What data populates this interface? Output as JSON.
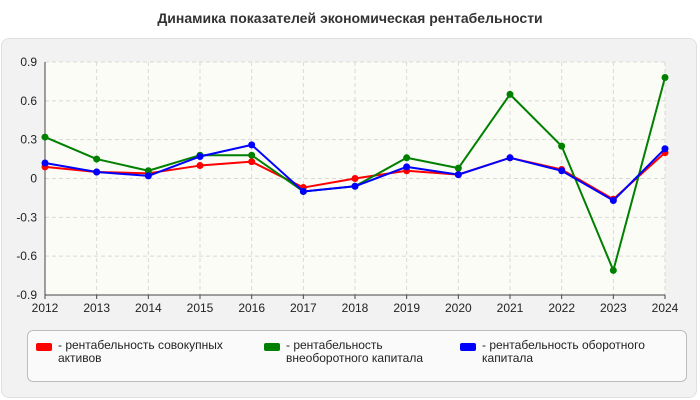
{
  "chart_data": {
    "type": "line",
    "title": "Динамика показателей экономическая рентабельности",
    "xlabel": "",
    "ylabel": "",
    "x": [
      "2012",
      "2013",
      "2014",
      "2015",
      "2016",
      "2017",
      "2018",
      "2019",
      "2020",
      "2021",
      "2022",
      "2023",
      "2024"
    ],
    "ylim": [
      -0.9,
      0.9
    ],
    "yticks": [
      0.9,
      0.6,
      0.3,
      0,
      -0.3,
      -0.6,
      -0.9
    ],
    "ytick_labels": [
      "0.9",
      "0.6",
      "0.3",
      "0",
      "-0.3",
      "-0.6",
      "-0.9"
    ],
    "grid": true,
    "legend_position": "bottom",
    "series": [
      {
        "name": "- рентабельность совокупных активов",
        "color": "#ff0000",
        "values": [
          0.09,
          0.05,
          0.04,
          0.1,
          0.13,
          -0.07,
          0.0,
          0.06,
          0.03,
          0.16,
          0.07,
          -0.16,
          0.2
        ]
      },
      {
        "name": "- рентабельность внеоборотного капитала",
        "color": "#008000",
        "values": [
          0.32,
          0.15,
          0.06,
          0.18,
          0.18,
          -0.1,
          -0.06,
          0.16,
          0.08,
          0.65,
          0.25,
          -0.71,
          0.78
        ]
      },
      {
        "name": "- рентабельность оборотного капитала",
        "color": "#0000ff",
        "values": [
          0.12,
          0.05,
          0.02,
          0.17,
          0.26,
          -0.1,
          -0.06,
          0.09,
          0.03,
          0.16,
          0.06,
          -0.17,
          0.23
        ]
      }
    ]
  }
}
